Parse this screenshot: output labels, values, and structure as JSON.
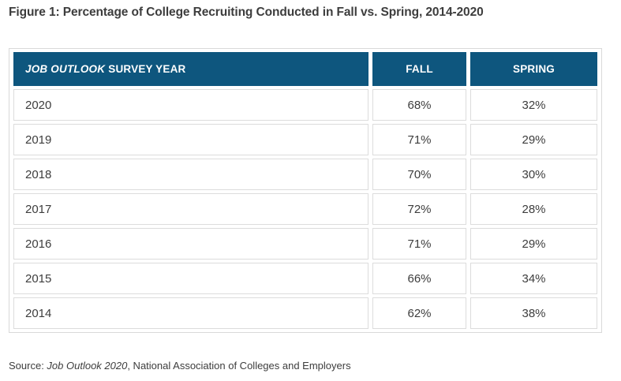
{
  "figure": {
    "title": "Figure 1: Percentage of College Recruiting Conducted in Fall vs. Spring, 2014-2020"
  },
  "table": {
    "header": {
      "survey_year_italic": "JOB OUTLOOK",
      "survey_year_rest": "SURVEY YEAR",
      "fall": "FALL",
      "spring": "SPRING"
    },
    "rows": [
      {
        "year": "2020",
        "fall": "68%",
        "spring": "32%"
      },
      {
        "year": "2019",
        "fall": "71%",
        "spring": "29%"
      },
      {
        "year": "2018",
        "fall": "70%",
        "spring": "30%"
      },
      {
        "year": "2017",
        "fall": "72%",
        "spring": "28%"
      },
      {
        "year": "2016",
        "fall": "71%",
        "spring": "29%"
      },
      {
        "year": "2015",
        "fall": "66%",
        "spring": "34%"
      },
      {
        "year": "2014",
        "fall": "62%",
        "spring": "38%"
      }
    ]
  },
  "source": {
    "prefix": "Source: ",
    "work_italic": "Job Outlook 2020",
    "suffix": ", National Association of Colleges and Employers"
  },
  "colors": {
    "header_bg": "#0e567e",
    "header_text": "#ffffff",
    "cell_border": "#dcdcdc",
    "outer_border": "#d9d9d9",
    "text": "#3d3d3d",
    "page_bg": "#ffffff"
  },
  "chart_data": {
    "type": "table",
    "title": "Figure 1: Percentage of College Recruiting Conducted in Fall vs. Spring, 2014-2020",
    "columns": [
      "Job Outlook Survey Year",
      "Fall",
      "Spring"
    ],
    "categories": [
      "2020",
      "2019",
      "2018",
      "2017",
      "2016",
      "2015",
      "2014"
    ],
    "series": [
      {
        "name": "Fall",
        "values": [
          68,
          71,
          70,
          72,
          71,
          66,
          62
        ]
      },
      {
        "name": "Spring",
        "values": [
          32,
          29,
          30,
          28,
          29,
          34,
          38
        ]
      }
    ],
    "units": "%",
    "source": "Source: Job Outlook 2020, National Association of Colleges and Employers",
    "layout_hints": {
      "header_style": "dark-teal band",
      "grid": "separated bordered cells"
    }
  }
}
